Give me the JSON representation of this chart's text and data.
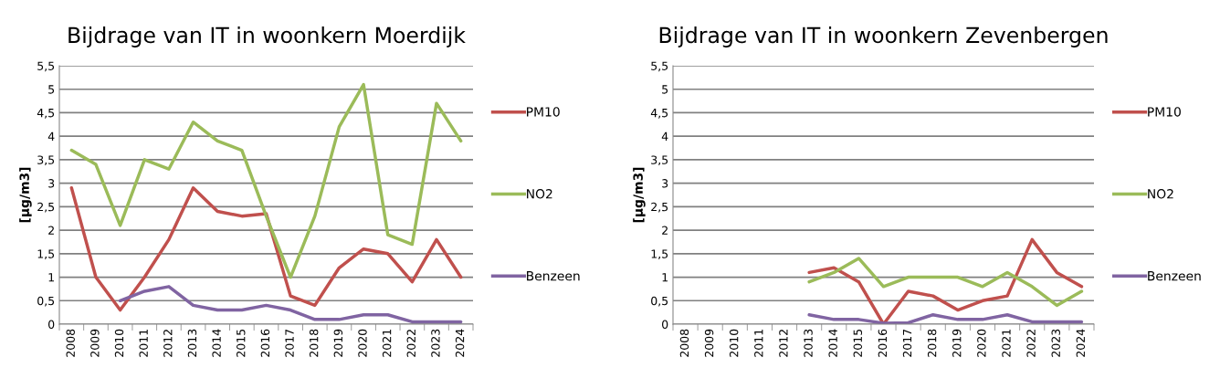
{
  "chart_data": [
    {
      "type": "line",
      "title": "Bijdrage van IT in woonkern Moerdijk",
      "ylabel": "[µg/m3]",
      "categories": [
        "2008",
        "2009",
        "2010",
        "2011",
        "2012",
        "2013",
        "2014",
        "2015",
        "2016",
        "2017",
        "2018",
        "2019",
        "2020",
        "2021",
        "2022",
        "2023",
        "2024"
      ],
      "series": [
        {
          "name": "PM10",
          "color": "#c0504d",
          "values": [
            2.9,
            1.0,
            0.3,
            1.0,
            1.8,
            2.9,
            2.4,
            2.3,
            2.35,
            0.6,
            0.4,
            1.2,
            1.6,
            1.5,
            0.9,
            1.8,
            1.0
          ]
        },
        {
          "name": "NO2",
          "color": "#9bbb59",
          "values": [
            3.7,
            3.4,
            2.1,
            3.5,
            3.3,
            4.3,
            3.9,
            3.7,
            2.3,
            1.0,
            2.3,
            4.2,
            5.1,
            1.9,
            1.7,
            4.7,
            3.9
          ]
        },
        {
          "name": "Benzeen",
          "color": "#8064a2",
          "values": [
            null,
            null,
            0.5,
            0.7,
            0.8,
            0.4,
            0.3,
            0.3,
            0.4,
            0.3,
            0.1,
            0.1,
            0.2,
            0.2,
            0.05,
            0.05,
            0.05
          ]
        }
      ],
      "ylim": [
        0,
        5.5
      ],
      "yticks": [
        0,
        {
          "value": 0.5,
          "label": "0,5"
        },
        1,
        {
          "value": 1.5,
          "label": "1,5"
        },
        2,
        {
          "value": 2.5,
          "label": "2,5"
        },
        3,
        {
          "value": 3.5,
          "label": "3,5"
        },
        4,
        {
          "value": 4.5,
          "label": "4,5"
        },
        5,
        {
          "value": 5.5,
          "label": "5,5"
        }
      ],
      "grid": "y",
      "legend": "right",
      "marker": "none",
      "line_style": "solid"
    },
    {
      "type": "line",
      "title": "Bijdrage van IT in woonkern Zevenbergen",
      "ylabel": "[µg/m3]",
      "categories": [
        "2008",
        "2009",
        "2010",
        "2011",
        "2012",
        "2013",
        "2014",
        "2015",
        "2016",
        "2017",
        "2018",
        "2019",
        "2020",
        "2021",
        "2022",
        "2023",
        "2024"
      ],
      "series": [
        {
          "name": "PM10",
          "color": "#c0504d",
          "values": [
            null,
            null,
            null,
            null,
            null,
            1.1,
            1.2,
            0.9,
            0.0,
            0.7,
            0.6,
            0.3,
            0.5,
            0.6,
            1.8,
            1.1,
            0.8
          ]
        },
        {
          "name": "NO2",
          "color": "#9bbb59",
          "values": [
            null,
            null,
            null,
            null,
            null,
            0.9,
            1.1,
            1.4,
            0.8,
            1.0,
            1.0,
            1.0,
            0.8,
            1.1,
            0.8,
            0.4,
            0.7
          ]
        },
        {
          "name": "Benzeen",
          "color": "#8064a2",
          "values": [
            null,
            null,
            null,
            null,
            null,
            0.2,
            0.1,
            0.1,
            0.02,
            0.03,
            0.2,
            0.1,
            0.1,
            0.2,
            0.05,
            0.05,
            0.05
          ]
        }
      ],
      "ylim": [
        0,
        5.5
      ],
      "yticks": [
        0,
        {
          "value": 0.5,
          "label": "0,5"
        },
        1,
        {
          "value": 1.5,
          "label": "1,5"
        },
        2,
        {
          "value": 2.5,
          "label": "2,5"
        },
        3,
        {
          "value": 3.5,
          "label": "3,5"
        },
        4,
        {
          "value": 4.5,
          "label": "4,5"
        },
        5,
        {
          "value": 5.5,
          "label": "5,5"
        }
      ],
      "grid": "y",
      "legend": "right",
      "marker": "none",
      "line_style": "solid"
    }
  ]
}
